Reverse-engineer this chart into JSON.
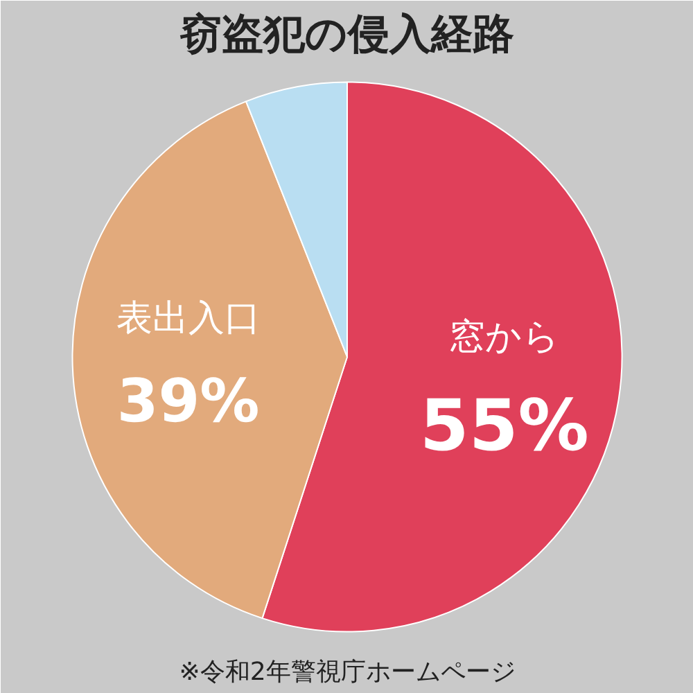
{
  "chart_data": {
    "type": "pie",
    "title": "窃盗犯の侵入経路",
    "categories": [
      "窓から",
      "表出入口",
      null
    ],
    "values": [
      55,
      39,
      6
    ],
    "colors": [
      "#e0405a",
      "#e2aa7c",
      "#b9def2"
    ],
    "value_labels": [
      "55%",
      "39%",
      null
    ],
    "annotations": [
      "※令和2年警視庁ホームページ"
    ]
  }
}
